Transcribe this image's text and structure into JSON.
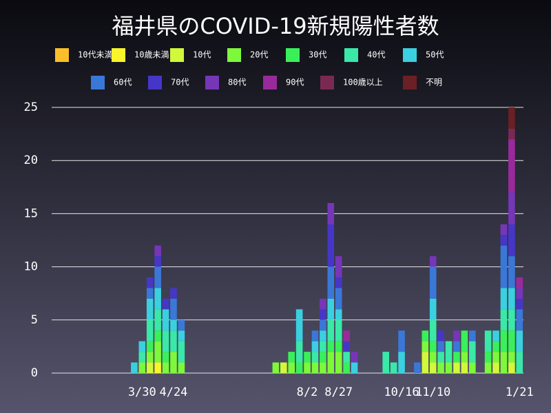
{
  "chart_data": {
    "type": "bar",
    "stacked": true,
    "title": "福井県のCOVID-19新規陽性者数",
    "categories": [
      null,
      null,
      null,
      null,
      null,
      null,
      null,
      null,
      null,
      null,
      null,
      "3/30",
      null,
      null,
      null,
      "4/24",
      null,
      null,
      null,
      null,
      null,
      null,
      null,
      null,
      null,
      null,
      null,
      null,
      null,
      null,
      null,
      null,
      "8/2",
      null,
      null,
      null,
      "8/27",
      null,
      null,
      null,
      null,
      null,
      null,
      null,
      "10/16",
      null,
      null,
      null,
      "11/10",
      null,
      null,
      null,
      null,
      null,
      null,
      null,
      null,
      null,
      null,
      "1/21"
    ],
    "ylim": [
      0,
      25
    ],
    "yticks": [
      0,
      5,
      10,
      15,
      20,
      25
    ],
    "grid": true,
    "series": [
      {
        "name": "10代未満",
        "color": "#fbbf2c",
        "values": [
          0,
          0,
          0,
          0,
          0,
          0,
          0,
          0,
          0,
          0,
          0,
          0,
          0,
          0,
          0,
          0,
          0,
          0,
          0,
          0,
          0,
          0,
          0,
          0,
          0,
          0,
          0,
          0,
          0,
          0,
          0,
          0,
          0,
          0,
          0,
          0,
          0,
          0,
          0,
          0,
          0,
          0,
          0,
          0,
          0,
          0,
          0,
          0,
          0,
          0,
          0,
          0,
          0,
          0,
          0,
          0,
          0,
          0,
          0,
          0
        ]
      },
      {
        "name": "10歳未満",
        "color": "#f8f52a",
        "values": [
          0,
          0,
          0,
          0,
          0,
          0,
          0,
          0,
          0,
          0,
          0,
          0,
          0,
          1,
          0,
          0,
          0,
          0,
          0,
          0,
          0,
          0,
          0,
          0,
          0,
          0,
          0,
          0,
          0,
          0,
          0,
          0,
          0,
          0,
          0,
          0,
          0,
          0,
          0,
          0,
          0,
          0,
          0,
          0,
          0,
          0,
          0,
          0,
          0,
          0,
          0,
          0,
          0,
          0,
          0,
          0,
          0,
          0,
          0,
          0
        ]
      },
      {
        "name": "10代",
        "color": "#d2f83a",
        "values": [
          0,
          0,
          0,
          0,
          0,
          0,
          0,
          0,
          0,
          0,
          0,
          0,
          1,
          0,
          0,
          0,
          0,
          0,
          0,
          0,
          0,
          0,
          0,
          0,
          0,
          0,
          0,
          0,
          0,
          1,
          0,
          0,
          0,
          0,
          0,
          0,
          0,
          0,
          0,
          0,
          0,
          0,
          0,
          0,
          0,
          0,
          0,
          2,
          1,
          0,
          0,
          1,
          1,
          0,
          0,
          0,
          1,
          0,
          1,
          0
        ]
      },
      {
        "name": "20代",
        "color": "#7ef83a",
        "values": [
          0,
          0,
          0,
          0,
          0,
          0,
          0,
          0,
          0,
          0,
          0,
          1,
          1,
          2,
          1,
          2,
          1,
          0,
          0,
          0,
          0,
          0,
          0,
          0,
          0,
          0,
          0,
          0,
          1,
          0,
          1,
          0,
          1,
          1,
          1,
          2,
          2,
          0,
          0,
          0,
          0,
          0,
          0,
          0,
          0,
          0,
          0,
          1,
          1,
          1,
          1,
          0,
          1,
          1,
          0,
          1,
          1,
          2,
          1,
          0
        ]
      },
      {
        "name": "30代",
        "color": "#3af05a",
        "values": [
          0,
          0,
          0,
          0,
          0,
          0,
          0,
          0,
          0,
          0,
          0,
          0,
          1,
          1,
          1,
          0,
          0,
          0,
          0,
          0,
          0,
          0,
          0,
          0,
          0,
          0,
          0,
          0,
          0,
          0,
          1,
          1,
          1,
          0,
          1,
          1,
          1,
          1,
          0,
          0,
          0,
          0,
          0,
          0,
          0,
          0,
          0,
          1,
          1,
          0,
          0,
          1,
          2,
          0,
          0,
          1,
          1,
          2,
          2,
          0
        ]
      },
      {
        "name": "40代",
        "color": "#3ae8a8",
        "values": [
          0,
          0,
          0,
          0,
          0,
          0,
          0,
          0,
          0,
          0,
          0,
          1,
          2,
          2,
          2,
          2,
          2,
          0,
          0,
          0,
          0,
          0,
          0,
          0,
          0,
          0,
          0,
          0,
          0,
          0,
          0,
          2,
          0,
          1,
          1,
          2,
          2,
          1,
          0,
          0,
          0,
          0,
          2,
          1,
          0,
          0,
          0,
          0,
          2,
          1,
          2,
          0,
          0,
          2,
          0,
          2,
          0,
          2,
          2,
          2
        ]
      },
      {
        "name": "50代",
        "color": "#3ad0e0",
        "values": [
          0,
          0,
          0,
          0,
          0,
          0,
          0,
          0,
          0,
          0,
          1,
          1,
          2,
          2,
          2,
          1,
          1,
          0,
          0,
          0,
          0,
          0,
          0,
          0,
          0,
          0,
          0,
          0,
          0,
          0,
          0,
          3,
          0,
          1,
          1,
          2,
          1,
          0,
          1,
          0,
          0,
          0,
          0,
          0,
          2,
          0,
          0,
          0,
          2,
          0,
          0,
          0,
          0,
          0,
          0,
          0,
          1,
          2,
          2,
          2
        ]
      },
      {
        "name": "60代",
        "color": "#3a78d8",
        "values": [
          0,
          0,
          0,
          0,
          0,
          0,
          0,
          0,
          0,
          0,
          0,
          0,
          1,
          2,
          0,
          2,
          1,
          0,
          0,
          0,
          0,
          0,
          0,
          0,
          0,
          0,
          0,
          0,
          0,
          0,
          0,
          0,
          0,
          1,
          1,
          3,
          2,
          0,
          0,
          0,
          0,
          0,
          0,
          0,
          2,
          0,
          1,
          0,
          3,
          1,
          0,
          1,
          0,
          1,
          0,
          0,
          0,
          4,
          3,
          2
        ]
      },
      {
        "name": "70代",
        "color": "#4636c8",
        "values": [
          0,
          0,
          0,
          0,
          0,
          0,
          0,
          0,
          0,
          0,
          0,
          0,
          1,
          1,
          1,
          1,
          0,
          0,
          0,
          0,
          0,
          0,
          0,
          0,
          0,
          0,
          0,
          0,
          0,
          0,
          0,
          0,
          0,
          0,
          1,
          4,
          1,
          1,
          0,
          0,
          0,
          0,
          0,
          0,
          0,
          0,
          0,
          0,
          0,
          1,
          0,
          0,
          0,
          0,
          0,
          0,
          0,
          1,
          3,
          1
        ]
      },
      {
        "name": "80代",
        "color": "#7636b8",
        "values": [
          0,
          0,
          0,
          0,
          0,
          0,
          0,
          0,
          0,
          0,
          0,
          0,
          0,
          1,
          0,
          0,
          0,
          0,
          0,
          0,
          0,
          0,
          0,
          0,
          0,
          0,
          0,
          0,
          0,
          0,
          0,
          0,
          0,
          0,
          1,
          2,
          2,
          0,
          1,
          0,
          0,
          0,
          0,
          0,
          0,
          0,
          0,
          0,
          1,
          0,
          0,
          1,
          0,
          0,
          0,
          0,
          0,
          1,
          3,
          1
        ]
      },
      {
        "name": "90代",
        "color": "#9a2a9c",
        "values": [
          0,
          0,
          0,
          0,
          0,
          0,
          0,
          0,
          0,
          0,
          0,
          0,
          0,
          0,
          0,
          0,
          0,
          0,
          0,
          0,
          0,
          0,
          0,
          0,
          0,
          0,
          0,
          0,
          0,
          0,
          0,
          0,
          0,
          0,
          0,
          0,
          0,
          1,
          0,
          0,
          0,
          0,
          0,
          0,
          0,
          0,
          0,
          0,
          0,
          0,
          0,
          0,
          0,
          0,
          0,
          0,
          0,
          0,
          5,
          1
        ]
      },
      {
        "name": "100歳以上",
        "color": "#7a2a52",
        "values": [
          0,
          0,
          0,
          0,
          0,
          0,
          0,
          0,
          0,
          0,
          0,
          0,
          0,
          0,
          0,
          0,
          0,
          0,
          0,
          0,
          0,
          0,
          0,
          0,
          0,
          0,
          0,
          0,
          0,
          0,
          0,
          0,
          0,
          0,
          0,
          0,
          0,
          0,
          0,
          0,
          0,
          0,
          0,
          0,
          0,
          0,
          0,
          0,
          0,
          0,
          0,
          0,
          0,
          0,
          0,
          0,
          0,
          0,
          1,
          0
        ]
      },
      {
        "name": "不明",
        "color": "#6a2024",
        "values": [
          0,
          0,
          0,
          0,
          0,
          0,
          0,
          0,
          0,
          0,
          0,
          0,
          0,
          0,
          0,
          0,
          0,
          0,
          0,
          0,
          0,
          0,
          0,
          0,
          0,
          0,
          0,
          0,
          0,
          0,
          0,
          0,
          0,
          0,
          0,
          0,
          0,
          0,
          0,
          0,
          0,
          0,
          0,
          0,
          0,
          0,
          0,
          0,
          0,
          0,
          0,
          0,
          0,
          0,
          0,
          0,
          0,
          0,
          2,
          0
        ]
      }
    ]
  }
}
